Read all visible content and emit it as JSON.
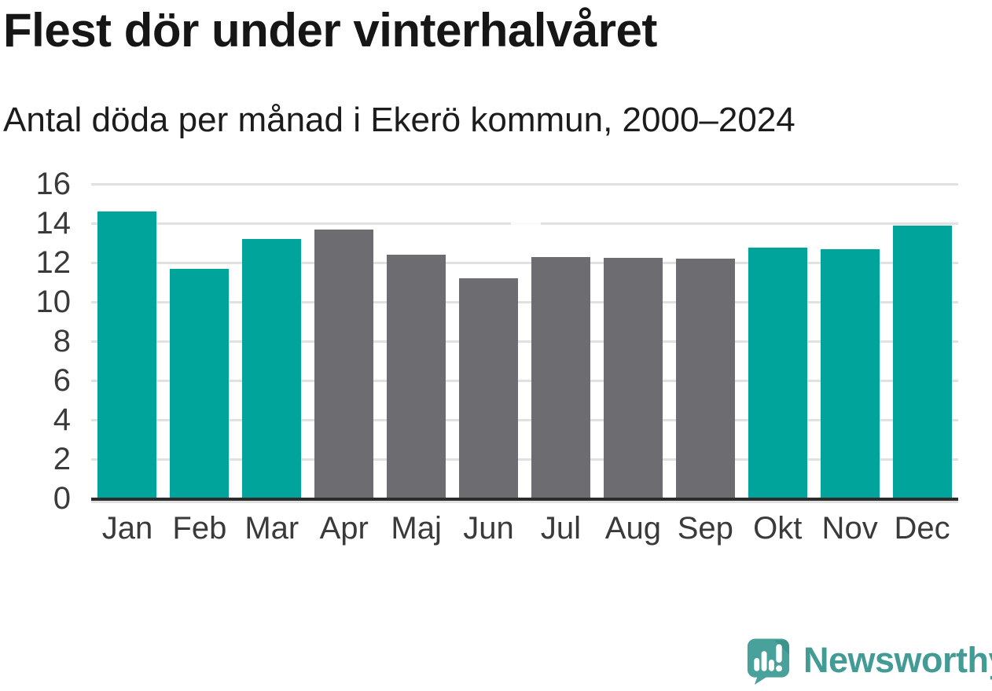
{
  "chart_data": {
    "type": "bar",
    "title": "Flest dör under vinterhalvåret",
    "subtitle": "Antal döda per månad i Ekerö kommun, 2000–2024",
    "categories": [
      "Jan",
      "Feb",
      "Mar",
      "Apr",
      "Maj",
      "Jun",
      "Jul",
      "Aug",
      "Sep",
      "Okt",
      "Nov",
      "Dec"
    ],
    "values": [
      14.6,
      11.7,
      13.2,
      13.7,
      12.4,
      11.2,
      12.3,
      12.25,
      12.2,
      12.75,
      12.7,
      13.9
    ],
    "bar_colors": [
      "teal",
      "teal",
      "teal",
      "gray",
      "gray",
      "gray",
      "gray",
      "gray",
      "gray",
      "teal",
      "teal",
      "teal"
    ],
    "palette": {
      "teal": "#00a49a",
      "gray": "#6d6d71"
    },
    "xlabel": "",
    "ylabel": "",
    "ylim": [
      0,
      16
    ],
    "yticks": [
      0,
      2,
      4,
      6,
      8,
      10,
      12,
      14,
      16
    ],
    "grid": "horizontal-light-gray",
    "legend": "none",
    "axis_line_color": "#2c2c2c",
    "gridline_color": "#e1e1e1",
    "tick_label_color": "#3a3a3a"
  },
  "branding": {
    "name": "Newsworthy",
    "logo_icon": "newsworthy-speech-bubble-barchart-icon",
    "color": "#429b95"
  }
}
